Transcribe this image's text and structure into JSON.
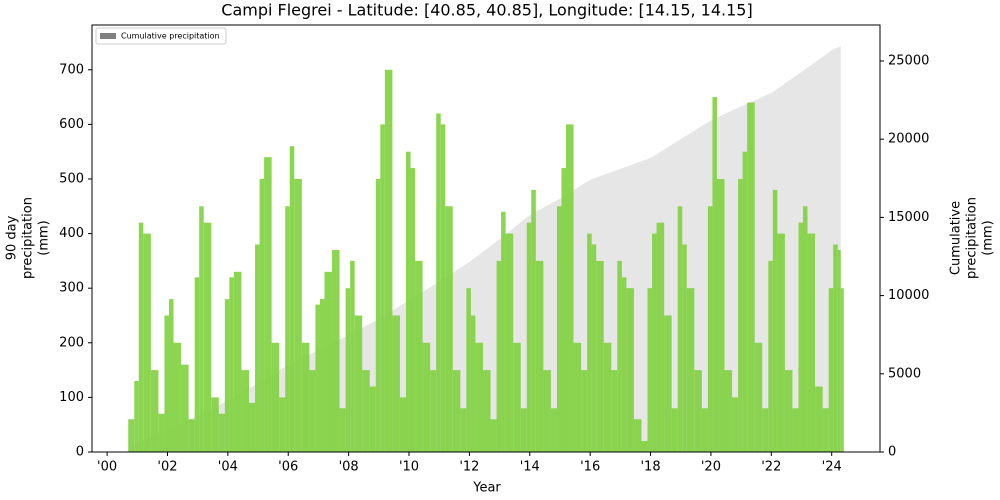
{
  "chart_data": {
    "type": "bar-area",
    "title": "Campi Flegrei - Latitude: [40.85, 40.85], Longitude: [14.15, 14.15]",
    "xlabel": "Year",
    "ylabel": [
      "90 day",
      "precipitation",
      "(mm)"
    ],
    "y2label": [
      "Cumulative",
      "precipitation",
      "(mm)"
    ],
    "legend": "upper left",
    "xlim": [
      1999.5,
      2025.6
    ],
    "ylim": [
      0,
      782
    ],
    "y2lim": [
      0,
      27300
    ],
    "xticks": [
      {
        "value": 2000,
        "label": "'00"
      },
      {
        "value": 2002,
        "label": "'02"
      },
      {
        "value": 2004,
        "label": "'04"
      },
      {
        "value": 2006,
        "label": "'06"
      },
      {
        "value": 2008,
        "label": "'08"
      },
      {
        "value": 2010,
        "label": "'10"
      },
      {
        "value": 2012,
        "label": "'12"
      },
      {
        "value": 2014,
        "label": "'14"
      },
      {
        "value": 2016,
        "label": "'16"
      },
      {
        "value": 2018,
        "label": "'18"
      },
      {
        "value": 2020,
        "label": "'20"
      },
      {
        "value": 2022,
        "label": "'22"
      },
      {
        "value": 2024,
        "label": "'24"
      }
    ],
    "yticks": [
      0,
      100,
      200,
      300,
      400,
      500,
      600,
      700
    ],
    "y2ticks": [
      0,
      5000,
      10000,
      15000,
      20000,
      25000
    ],
    "x": [
      2000.7,
      2000.9,
      2001.05,
      2001.2,
      2001.45,
      2001.7,
      2001.9,
      2002.05,
      2002.2,
      2002.45,
      2002.7,
      2002.9,
      2003.05,
      2003.2,
      2003.45,
      2003.7,
      2003.9,
      2004.05,
      2004.2,
      2004.45,
      2004.7,
      2004.9,
      2005.05,
      2005.2,
      2005.45,
      2005.7,
      2005.9,
      2006.05,
      2006.2,
      2006.45,
      2006.7,
      2006.9,
      2007.05,
      2007.2,
      2007.45,
      2007.7,
      2007.9,
      2008.05,
      2008.2,
      2008.45,
      2008.7,
      2008.9,
      2009.05,
      2009.2,
      2009.45,
      2009.7,
      2009.9,
      2010.05,
      2010.2,
      2010.45,
      2010.7,
      2010.9,
      2011.05,
      2011.2,
      2011.45,
      2011.7,
      2011.9,
      2012.05,
      2012.2,
      2012.45,
      2012.7,
      2012.9,
      2013.05,
      2013.2,
      2013.45,
      2013.7,
      2013.9,
      2014.05,
      2014.2,
      2014.45,
      2014.7,
      2014.9,
      2015.05,
      2015.2,
      2015.45,
      2015.7,
      2015.9,
      2016.05,
      2016.2,
      2016.45,
      2016.7,
      2016.9,
      2017.05,
      2017.2,
      2017.45,
      2017.7,
      2017.9,
      2018.05,
      2018.2,
      2018.45,
      2018.7,
      2018.9,
      2019.05,
      2019.2,
      2019.45,
      2019.7,
      2019.9,
      2020.05,
      2020.2,
      2020.45,
      2020.7,
      2020.9,
      2021.05,
      2021.2,
      2021.45,
      2021.7,
      2021.9,
      2022.05,
      2022.2,
      2022.45,
      2022.7,
      2022.9,
      2023.05,
      2023.2,
      2023.45,
      2023.7,
      2023.9,
      2024.05,
      2024.2,
      2024.3
    ],
    "series": [
      {
        "name": "90 day precipitation",
        "color": "#7ed03e",
        "values": [
          60,
          130,
          420,
          400,
          150,
          70,
          250,
          280,
          200,
          160,
          60,
          320,
          450,
          420,
          100,
          70,
          280,
          320,
          330,
          150,
          90,
          380,
          500,
          540,
          200,
          100,
          450,
          560,
          500,
          200,
          150,
          270,
          280,
          330,
          370,
          80,
          300,
          350,
          250,
          150,
          120,
          500,
          600,
          700,
          250,
          100,
          550,
          520,
          350,
          200,
          150,
          620,
          600,
          450,
          150,
          80,
          300,
          250,
          200,
          150,
          60,
          350,
          440,
          400,
          200,
          80,
          420,
          480,
          350,
          150,
          80,
          450,
          520,
          600,
          200,
          150,
          400,
          380,
          350,
          200,
          150,
          350,
          320,
          300,
          60,
          20,
          300,
          400,
          420,
          250,
          80,
          450,
          380,
          300,
          150,
          80,
          450,
          650,
          500,
          150,
          100,
          500,
          550,
          640,
          200,
          80,
          350,
          480,
          400,
          150,
          80,
          420,
          450,
          400,
          120,
          80,
          300,
          380,
          370,
          300
        ]
      },
      {
        "name": "Cumulative precipitation",
        "color": "#808080",
        "axis": "y2",
        "values": [
          0,
          400,
          640,
          760,
          960,
          1160,
          1320,
          1450,
          1580,
          1810,
          2030,
          2210,
          2350,
          2500,
          2750,
          3000,
          3200,
          3360,
          3520,
          3800,
          4070,
          4290,
          4460,
          4630,
          4920,
          5210,
          5440,
          5610,
          5750,
          5980,
          6220,
          6410,
          6550,
          6700,
          6940,
          7190,
          7380,
          7530,
          7680,
          7940,
          8190,
          8400,
          8560,
          8740,
          9040,
          9340,
          9580,
          9760,
          9940,
          10240,
          10540,
          10780,
          10960,
          11150,
          11460,
          11780,
          12030,
          12220,
          12440,
          12800,
          13170,
          13460,
          13680,
          13910,
          14300,
          14690,
          15000,
          15200,
          15360,
          15620,
          15890,
          16100,
          16260,
          16440,
          16740,
          17040,
          17280,
          17440,
          17540,
          17720,
          17890,
          18030,
          18140,
          18240,
          18420,
          18590,
          18730,
          18860,
          19040,
          19340,
          19640,
          19880,
          20060,
          20240,
          20540,
          20840,
          21080,
          21250,
          21380,
          21610,
          21830,
          22010,
          22140,
          22270,
          22480,
          22700,
          22870,
          23020,
          23220,
          23560,
          23900,
          24170,
          24370,
          24580,
          24930,
          25280,
          25560,
          25750,
          25850,
          25950
        ]
      }
    ]
  }
}
